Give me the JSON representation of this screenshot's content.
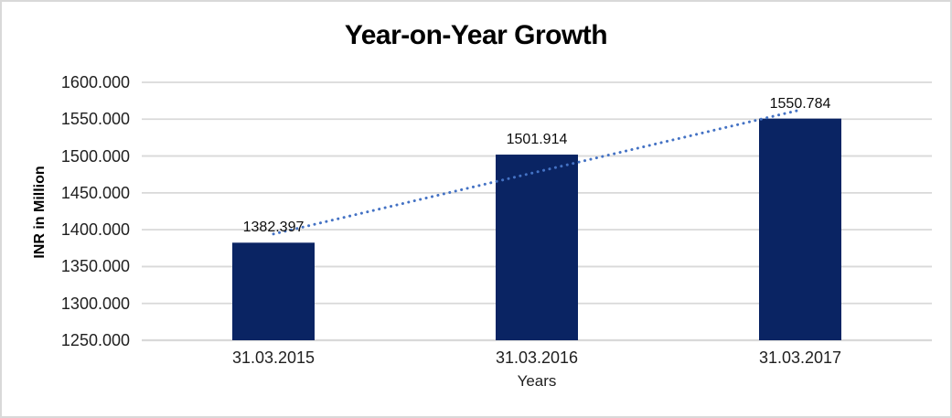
{
  "chart_data": {
    "type": "bar",
    "title": "Year-on-Year Growth",
    "xlabel": "Years",
    "ylabel": "INR in Million",
    "categories": [
      "31.03.2015",
      "31.03.2016",
      "31.03.2017"
    ],
    "values": [
      1382.397,
      1501.914,
      1550.784
    ],
    "data_labels": [
      "1382.397",
      "1501.914",
      "1550.784"
    ],
    "ylim": [
      1250,
      1600
    ],
    "ytick_step": 50,
    "ytick_labels": [
      "1250.000",
      "1300.000",
      "1350.000",
      "1400.000",
      "1450.000",
      "1500.000",
      "1550.000",
      "1600.000"
    ],
    "grid": true,
    "legend_position": "none",
    "trendline": {
      "type": "linear",
      "style": "dotted"
    },
    "colors": {
      "bar": "#0a2463",
      "trendline": "#4472c4",
      "gridline": "#d9d9d9",
      "border": "#d9d9d9",
      "text": "#1f1f1f",
      "title_text": "#000000"
    }
  }
}
